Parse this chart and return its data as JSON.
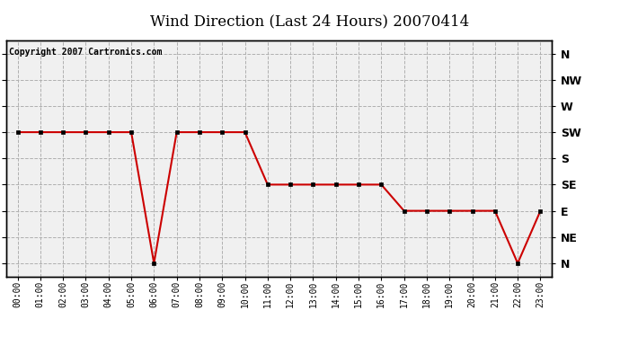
{
  "title": "Wind Direction (Last 24 Hours) 20070414",
  "copyright": "Copyright 2007 Cartronics.com",
  "directions": [
    "N",
    "NE",
    "E",
    "SE",
    "S",
    "SW",
    "W",
    "NW",
    "N"
  ],
  "direction_values": [
    0,
    1,
    2,
    3,
    4,
    5,
    6,
    7,
    8
  ],
  "hours": [
    0,
    1,
    2,
    3,
    4,
    5,
    6,
    7,
    8,
    9,
    10,
    11,
    12,
    13,
    14,
    15,
    16,
    17,
    18,
    19,
    20,
    21,
    22,
    23
  ],
  "wind_data": [
    5,
    5,
    5,
    5,
    5,
    5,
    0,
    5,
    5,
    5,
    5,
    3,
    3,
    3,
    3,
    3,
    3,
    2,
    2,
    2,
    2,
    2,
    0,
    2
  ],
  "line_color": "#cc0000",
  "marker_color": "#000000",
  "background_color": "#ffffff",
  "grid_color": "#b0b0b0",
  "plot_bg_color": "#f0f0f0",
  "ylim": [
    -0.5,
    8.5
  ],
  "xlim": [
    -0.5,
    23.5
  ],
  "title_fontsize": 12,
  "copyright_fontsize": 7,
  "tick_fontsize": 7,
  "ytick_fontsize": 9
}
